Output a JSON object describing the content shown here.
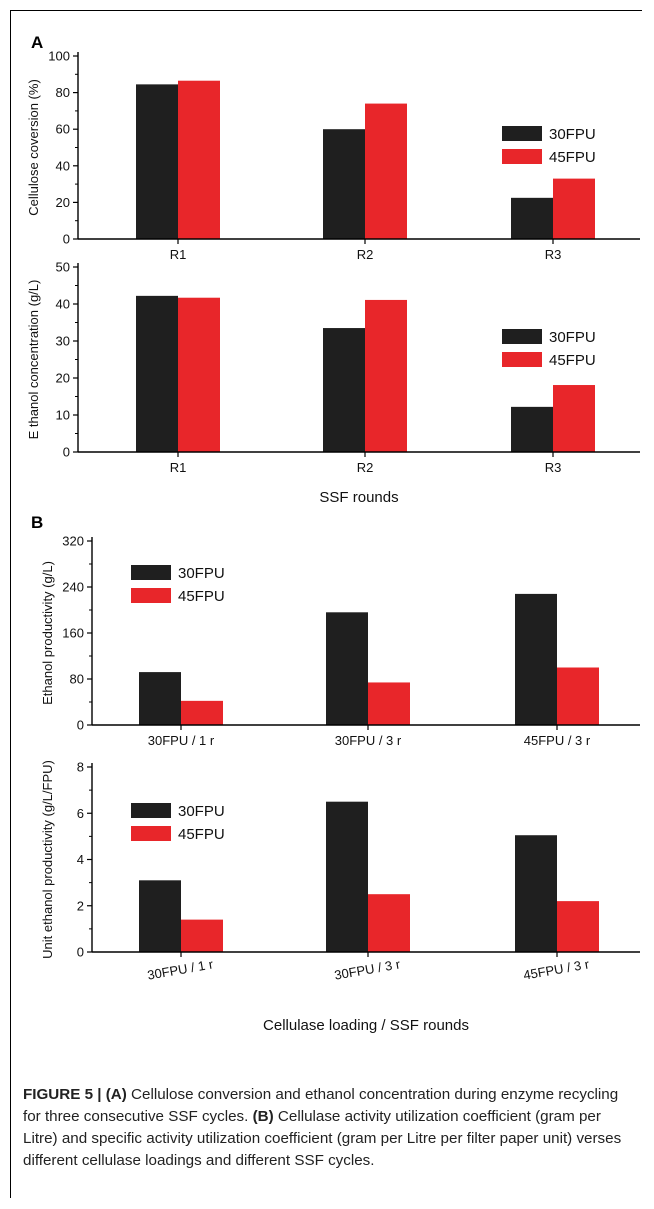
{
  "colors": {
    "series_30": "#1f1f1f",
    "series_45": "#e8262a",
    "axis": "#000000"
  },
  "panels": [
    {
      "label": "A",
      "xtitle": "SSF rounds",
      "xtitle_below_chart": 1
    },
    {
      "label": "B",
      "xtitle": "Cellulase loading / SSF rounds",
      "xtitle_below_chart": 3
    }
  ],
  "chart_data": [
    {
      "type": "bar",
      "panel": "A",
      "categories": [
        "R1",
        "R2",
        "R3"
      ],
      "series": [
        {
          "name": "30FPU",
          "values": [
            84.5,
            60,
            22.5
          ]
        },
        {
          "name": "45FPU",
          "values": [
            86.5,
            74,
            33
          ]
        }
      ],
      "ylabel": "Cellulose coversion (%)",
      "ylim": [
        0,
        100
      ],
      "yticks": [
        0,
        20,
        40,
        60,
        80,
        100
      ],
      "legend_position": "right",
      "grid": false,
      "xlabel": ""
    },
    {
      "type": "bar",
      "panel": "A",
      "categories": [
        "R1",
        "R2",
        "R3"
      ],
      "series": [
        {
          "name": "30FPU",
          "values": [
            42.2,
            33.5,
            12.2
          ]
        },
        {
          "name": "45FPU",
          "values": [
            41.7,
            41.1,
            18.1
          ]
        }
      ],
      "ylabel": "E thanol concentration (g/L)",
      "ylim": [
        0,
        50
      ],
      "yticks": [
        0,
        10,
        20,
        30,
        40,
        50
      ],
      "legend_position": "right",
      "grid": false,
      "xlabel": "SSF rounds"
    },
    {
      "type": "bar",
      "panel": "B",
      "categories": [
        "30FPU / 1 r",
        "30FPU / 3 r",
        "45FPU / 3 r"
      ],
      "series": [
        {
          "name": "30FPU",
          "values": [
            92,
            196,
            228
          ]
        },
        {
          "name": "45FPU",
          "values": [
            42,
            74,
            100
          ]
        }
      ],
      "ylabel": "Ethanol  productivity  (g/L)",
      "ylim": [
        0,
        320
      ],
      "yticks": [
        0,
        80,
        160,
        240,
        320
      ],
      "legend_position": "left",
      "grid": false,
      "xlabel": ""
    },
    {
      "type": "bar",
      "panel": "B",
      "categories": [
        "30FPU / 1 r",
        "30FPU / 3 r",
        "45FPU / 3 r"
      ],
      "series": [
        {
          "name": "30FPU",
          "values": [
            3.1,
            6.5,
            5.05
          ]
        },
        {
          "name": "45FPU",
          "values": [
            1.4,
            2.5,
            2.2
          ]
        }
      ],
      "ylabel": "Unit ethanol  productivity  (g/L/FPU)",
      "ylim": [
        0,
        8
      ],
      "yticks": [
        0,
        2,
        4,
        6,
        8
      ],
      "legend_position": "left",
      "grid": false,
      "xlabel": "Cellulase loading / SSF rounds"
    }
  ],
  "caption": {
    "figure": "FIGURE 5 | ",
    "a_label": "(A)",
    "a_text": " Cellulose conversion and ethanol concentration during enzyme recycling for three consecutive SSF cycles. ",
    "b_label": "(B)",
    "b_text": " Cellulase activity utilization coefficient (gram per Litre) and specific activity utilization coefficient (gram per Litre per filter paper unit) verses different cellulase loadings and different SSF cycles."
  }
}
